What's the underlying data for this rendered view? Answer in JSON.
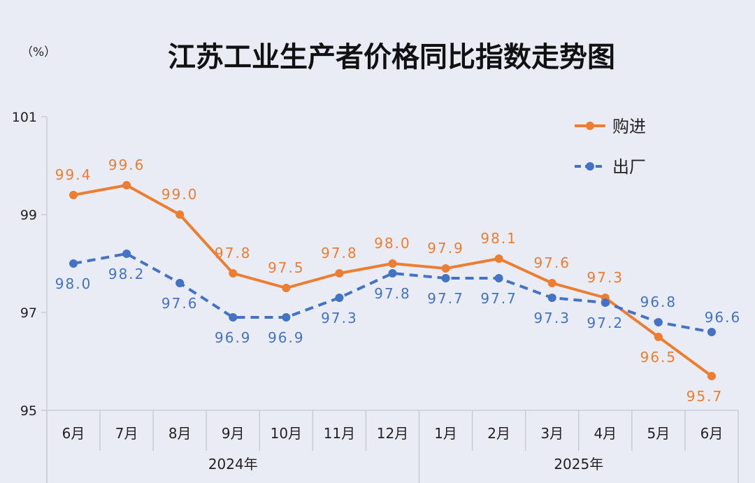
{
  "chart_data": {
    "type": "line",
    "title": "江苏工业生产者价格同比指数走势图",
    "unit": "（%）",
    "ylim": [
      95,
      101
    ],
    "yticks": [
      "95",
      "97",
      "99",
      "101"
    ],
    "categories": [
      "6月",
      "7月",
      "8月",
      "9月",
      "10月",
      "11月",
      "12月",
      "1月",
      "2月",
      "3月",
      "4月",
      "5月",
      "6月"
    ],
    "year_groups": [
      {
        "label": "2024年",
        "span": 7
      },
      {
        "label": "2025年",
        "span": 6
      }
    ],
    "series": [
      {
        "name": "购进",
        "color": "#ed7d31",
        "style": "solid",
        "values": [
          99.4,
          99.6,
          99.0,
          97.8,
          97.5,
          97.8,
          98.0,
          97.9,
          98.1,
          97.6,
          97.3,
          96.5,
          95.7
        ],
        "labels": [
          "99.4",
          "99.6",
          "99.0",
          "97.8",
          "97.5",
          "97.8",
          "98.0",
          "97.9",
          "98.1",
          "97.6",
          "97.3",
          "96.5",
          "95.7"
        ]
      },
      {
        "name": "出厂",
        "color": "#4472c4",
        "style": "dashed",
        "values": [
          98.0,
          98.2,
          97.6,
          96.9,
          96.9,
          97.3,
          97.8,
          97.7,
          97.7,
          97.3,
          97.2,
          96.8,
          96.6
        ],
        "labels": [
          "98.0",
          "98.2",
          "97.6",
          "96.9",
          "96.9",
          "97.3",
          "97.8",
          "97.7",
          "97.7",
          "97.3",
          "97.2",
          "96.8",
          "96.6"
        ]
      }
    ],
    "legend_position": "top-right",
    "grid": false
  }
}
